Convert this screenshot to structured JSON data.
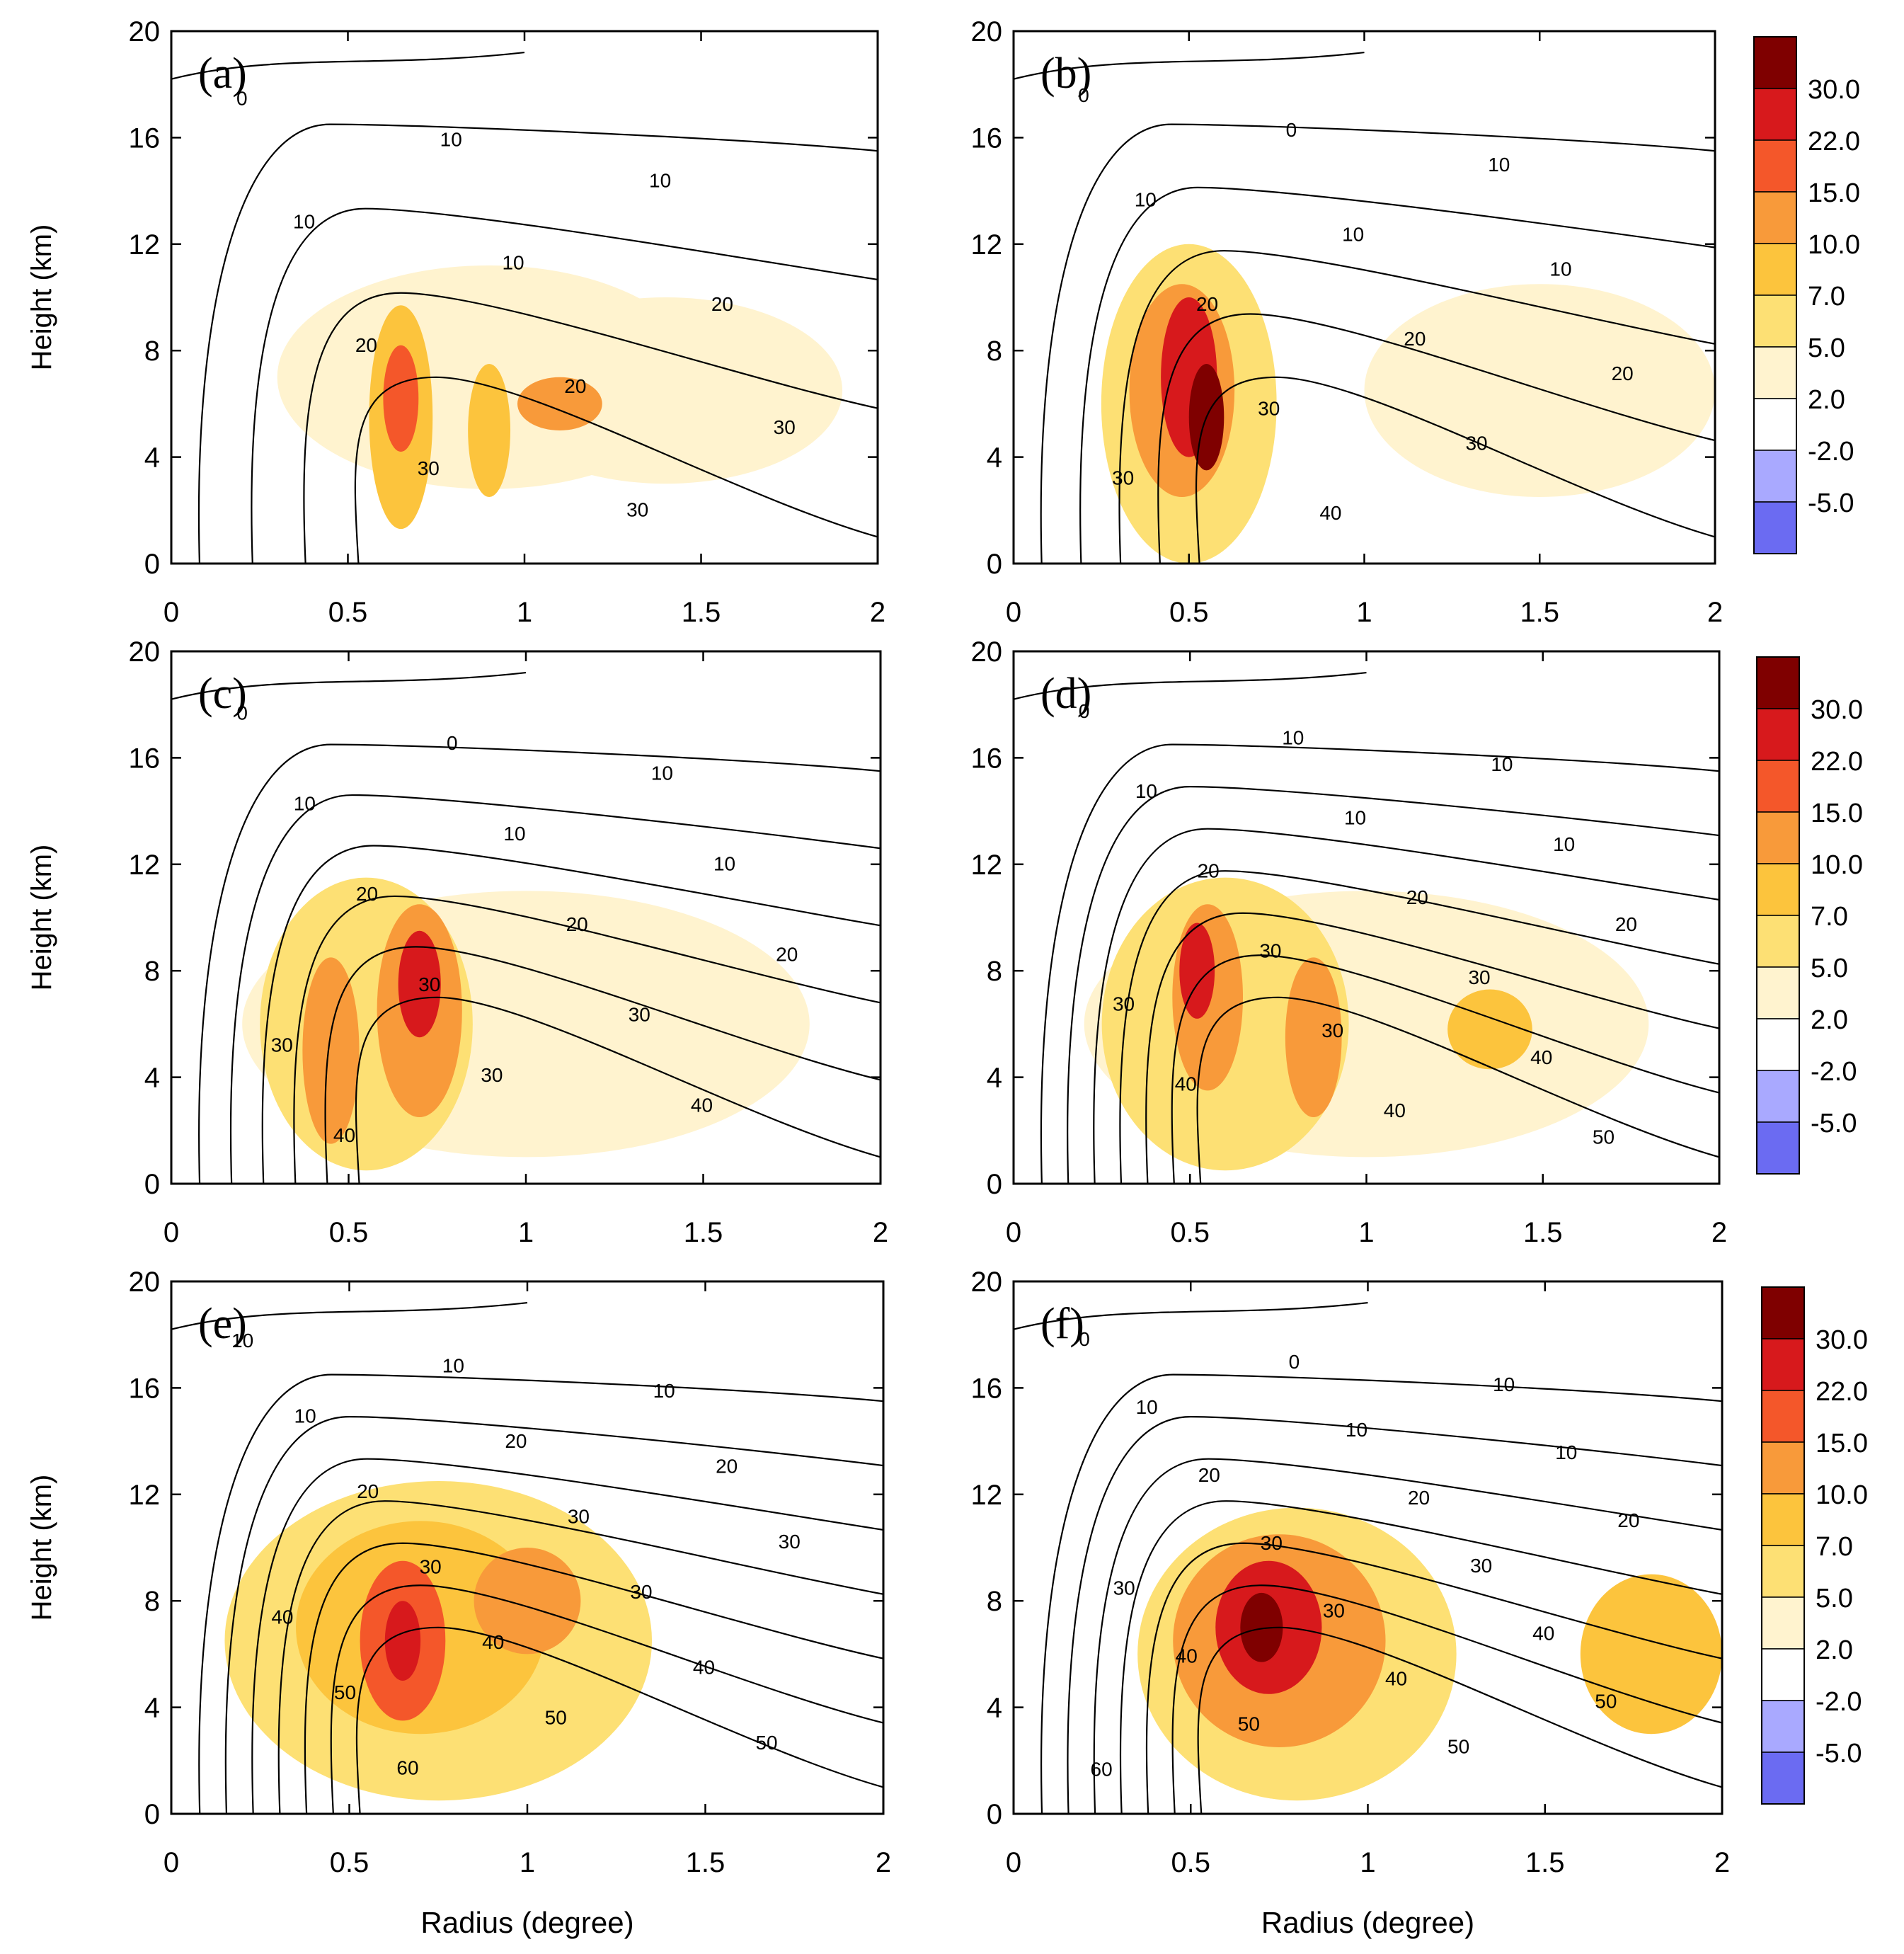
{
  "chart_data": {
    "type": "contour",
    "description_axes": {
      "xlabel": "Radius (degree)",
      "ylabel": "Height (km)",
      "xlim": [
        0,
        2
      ],
      "ylim": [
        0,
        20
      ],
      "xticks": [
        "0",
        "0.5",
        "1",
        "1.5",
        "2"
      ],
      "yticks": [
        "0",
        "4",
        "8",
        "12",
        "16",
        "20"
      ]
    },
    "colorbar": {
      "labels": [
        "30.0",
        "22.0",
        "15.0",
        "10.0",
        "7.0",
        "5.0",
        "2.0",
        "-2.0",
        "-5.0"
      ],
      "colors": [
        "#7f0000",
        "#d7191c",
        "#f4572a",
        "#f89a3a",
        "#fcc43d",
        "#fde074",
        "#fff3cf",
        "#ffffff",
        "#a9a9ff",
        "#6b6bf2"
      ]
    },
    "panels": [
      {
        "label": "(a)",
        "contour_labels": [
          "0",
          "10",
          "10",
          "10",
          "10",
          "20",
          "20",
          "20",
          "30",
          "30",
          "30"
        ],
        "fill_blobs": [
          {
            "x": 0.9,
            "y": 7.0,
            "rx": 0.6,
            "ry": 4.2,
            "level": 1
          },
          {
            "x": 1.4,
            "y": 6.5,
            "rx": 0.5,
            "ry": 3.5,
            "level": 1
          },
          {
            "x": 0.65,
            "y": 5.5,
            "rx": 0.09,
            "ry": 4.2,
            "level": 3
          },
          {
            "x": 0.65,
            "y": 6.2,
            "rx": 0.05,
            "ry": 2.0,
            "level": 5
          },
          {
            "x": 0.9,
            "y": 5.0,
            "rx": 0.06,
            "ry": 2.5,
            "level": 3
          },
          {
            "x": 1.1,
            "y": 6.0,
            "rx": 0.12,
            "ry": 1.0,
            "level": 4
          }
        ]
      },
      {
        "label": "(b)",
        "contour_labels": [
          "0",
          "0",
          "10",
          "10",
          "10",
          "10",
          "20",
          "20",
          "20",
          "30",
          "30",
          "30",
          "40"
        ],
        "fill_blobs": [
          {
            "x": 1.5,
            "y": 6.5,
            "rx": 0.5,
            "ry": 4.0,
            "level": 1
          },
          {
            "x": 0.5,
            "y": 6.0,
            "rx": 0.25,
            "ry": 6.0,
            "level": 2
          },
          {
            "x": 0.48,
            "y": 6.5,
            "rx": 0.15,
            "ry": 4.0,
            "level": 4
          },
          {
            "x": 0.5,
            "y": 7.0,
            "rx": 0.08,
            "ry": 3.0,
            "level": 6
          },
          {
            "x": 0.55,
            "y": 5.5,
            "rx": 0.05,
            "ry": 2.0,
            "level": 7
          }
        ]
      },
      {
        "label": "(c)",
        "contour_labels": [
          "0",
          "0",
          "10",
          "10",
          "10",
          "10",
          "20",
          "20",
          "20",
          "30",
          "30",
          "30",
          "30",
          "40",
          "40"
        ],
        "fill_blobs": [
          {
            "x": 1.0,
            "y": 6.0,
            "rx": 0.8,
            "ry": 5.0,
            "level": 1
          },
          {
            "x": 0.55,
            "y": 6.0,
            "rx": 0.3,
            "ry": 5.5,
            "level": 2
          },
          {
            "x": 0.7,
            "y": 6.5,
            "rx": 0.12,
            "ry": 4.0,
            "level": 4
          },
          {
            "x": 0.7,
            "y": 7.5,
            "rx": 0.06,
            "ry": 2.0,
            "level": 6
          },
          {
            "x": 0.45,
            "y": 5.0,
            "rx": 0.08,
            "ry": 3.5,
            "level": 4
          }
        ]
      },
      {
        "label": "(d)",
        "contour_labels": [
          "0",
          "10",
          "10",
          "10",
          "10",
          "10",
          "20",
          "20",
          "20",
          "30",
          "30",
          "30",
          "30",
          "40",
          "40",
          "40",
          "50"
        ],
        "fill_blobs": [
          {
            "x": 1.0,
            "y": 6.0,
            "rx": 0.8,
            "ry": 5.0,
            "level": 1
          },
          {
            "x": 0.6,
            "y": 6.0,
            "rx": 0.35,
            "ry": 5.5,
            "level": 2
          },
          {
            "x": 0.55,
            "y": 7.0,
            "rx": 0.1,
            "ry": 3.5,
            "level": 4
          },
          {
            "x": 0.52,
            "y": 8.0,
            "rx": 0.05,
            "ry": 1.8,
            "level": 6
          },
          {
            "x": 0.85,
            "y": 5.5,
            "rx": 0.08,
            "ry": 3.0,
            "level": 4
          },
          {
            "x": 1.35,
            "y": 5.8,
            "rx": 0.12,
            "ry": 1.5,
            "level": 3
          }
        ]
      },
      {
        "label": "(e)",
        "contour_labels": [
          "10",
          "10",
          "10",
          "10",
          "20",
          "20",
          "20",
          "30",
          "30",
          "30",
          "30",
          "40",
          "40",
          "40",
          "50",
          "50",
          "50",
          "60"
        ],
        "fill_blobs": [
          {
            "x": 0.75,
            "y": 6.5,
            "rx": 0.6,
            "ry": 6.0,
            "level": 2
          },
          {
            "x": 0.7,
            "y": 7.0,
            "rx": 0.35,
            "ry": 4.0,
            "level": 3
          },
          {
            "x": 0.65,
            "y": 6.5,
            "rx": 0.12,
            "ry": 3.0,
            "level": 5
          },
          {
            "x": 0.65,
            "y": 6.5,
            "rx": 0.05,
            "ry": 1.5,
            "level": 6
          },
          {
            "x": 1.0,
            "y": 8.0,
            "rx": 0.15,
            "ry": 2.0,
            "level": 4
          }
        ]
      },
      {
        "label": "(f)",
        "contour_labels": [
          "0",
          "0",
          "10",
          "10",
          "10",
          "10",
          "20",
          "20",
          "20",
          "30",
          "30",
          "30",
          "30",
          "40",
          "40",
          "40",
          "50",
          "50",
          "50",
          "60"
        ],
        "fill_blobs": [
          {
            "x": 0.8,
            "y": 6.0,
            "rx": 0.45,
            "ry": 5.5,
            "level": 2
          },
          {
            "x": 0.75,
            "y": 6.5,
            "rx": 0.3,
            "ry": 4.0,
            "level": 4
          },
          {
            "x": 0.72,
            "y": 7.0,
            "rx": 0.15,
            "ry": 2.5,
            "level": 6
          },
          {
            "x": 0.7,
            "y": 7.0,
            "rx": 0.06,
            "ry": 1.3,
            "level": 7
          },
          {
            "x": 1.8,
            "y": 6.0,
            "rx": 0.2,
            "ry": 3.0,
            "level": 3
          }
        ]
      }
    ]
  }
}
